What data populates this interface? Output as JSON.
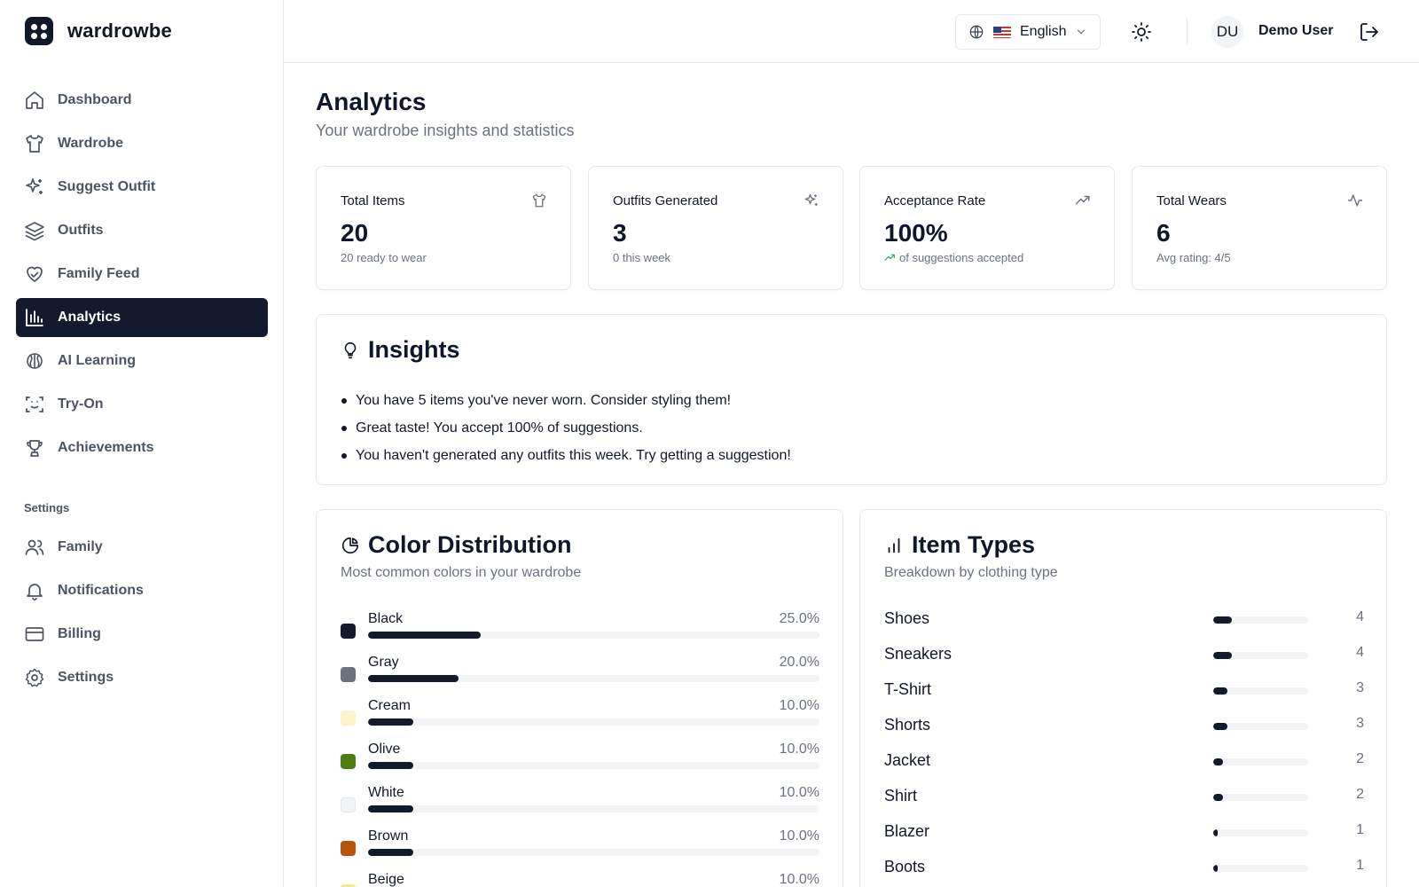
{
  "app": {
    "name": "wardrowbe"
  },
  "sidebar": {
    "items": [
      {
        "label": "Dashboard",
        "icon": "home-icon"
      },
      {
        "label": "Wardrobe",
        "icon": "shirt-icon"
      },
      {
        "label": "Suggest Outfit",
        "icon": "sparkles-icon"
      },
      {
        "label": "Outfits",
        "icon": "layers-icon"
      },
      {
        "label": "Family Feed",
        "icon": "heart-handshake-icon"
      },
      {
        "label": "Analytics",
        "icon": "bar-chart-icon",
        "active": true
      },
      {
        "label": "AI Learning",
        "icon": "brain-icon"
      },
      {
        "label": "Try-On",
        "icon": "scan-face-icon"
      },
      {
        "label": "Achievements",
        "icon": "trophy-icon"
      }
    ],
    "settings_heading": "Settings",
    "settings_items": [
      {
        "label": "Family",
        "icon": "users-icon"
      },
      {
        "label": "Notifications",
        "icon": "bell-icon"
      },
      {
        "label": "Billing",
        "icon": "credit-card-icon"
      },
      {
        "label": "Settings",
        "icon": "gear-icon"
      }
    ]
  },
  "header": {
    "language": "English",
    "avatar_initials": "DU",
    "user_name": "Demo User"
  },
  "page": {
    "title": "Analytics",
    "subtitle": "Your wardrobe insights and statistics"
  },
  "stats": [
    {
      "label": "Total Items",
      "value": "20",
      "foot": "20 ready to wear",
      "icon": "shirt-icon"
    },
    {
      "label": "Outfits Generated",
      "value": "3",
      "foot": "0 this week",
      "icon": "sparkles-icon"
    },
    {
      "label": "Acceptance Rate",
      "value": "100%",
      "foot": "of suggestions accepted",
      "icon": "trending-up-icon"
    },
    {
      "label": "Total Wears",
      "value": "6",
      "foot": "Avg rating: 4/5",
      "icon": "activity-icon"
    }
  ],
  "insights": {
    "title": "Insights",
    "items": [
      "You have 5 items you've never worn. Consider styling them!",
      "Great taste! You accept 100% of suggestions.",
      "You haven't generated any outfits this week. Try getting a suggestion!"
    ]
  },
  "color_distribution": {
    "title": "Color Distribution",
    "subtitle": "Most common colors in your wardrobe",
    "rows": [
      {
        "name": "Black",
        "pct_label": "25.0%",
        "pct": 25.0,
        "swatch": "#141a2e"
      },
      {
        "name": "Gray",
        "pct_label": "20.0%",
        "pct": 20.0,
        "swatch": "#6b7280"
      },
      {
        "name": "Cream",
        "pct_label": "10.0%",
        "pct": 10.0,
        "swatch": "#fdf3c8"
      },
      {
        "name": "Olive",
        "pct_label": "10.0%",
        "pct": 10.0,
        "swatch": "#4d7c0f"
      },
      {
        "name": "White",
        "pct_label": "10.0%",
        "pct": 10.0,
        "swatch": "#f3f4f6"
      },
      {
        "name": "Brown",
        "pct_label": "10.0%",
        "pct": 10.0,
        "swatch": "#b45309"
      },
      {
        "name": "Beige",
        "pct_label": "10.0%",
        "pct": 10.0,
        "swatch": "#fde68a"
      }
    ]
  },
  "item_types": {
    "title": "Item Types",
    "subtitle": "Breakdown by clothing type",
    "rows": [
      {
        "name": "Shoes",
        "count": 4
      },
      {
        "name": "Sneakers",
        "count": 4
      },
      {
        "name": "T-Shirt",
        "count": 3
      },
      {
        "name": "Shorts",
        "count": 3
      },
      {
        "name": "Jacket",
        "count": 2
      },
      {
        "name": "Shirt",
        "count": 2
      },
      {
        "name": "Blazer",
        "count": 1
      },
      {
        "name": "Boots",
        "count": 1
      }
    ]
  }
}
